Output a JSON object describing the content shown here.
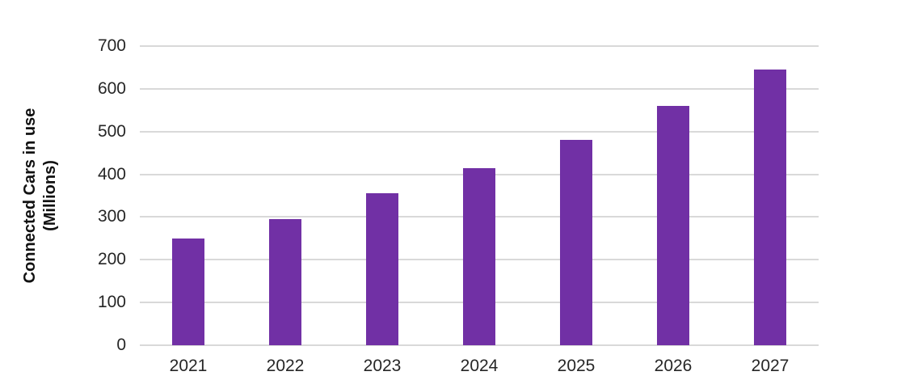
{
  "chart_data": {
    "type": "bar",
    "title": "",
    "categories": [
      "2021",
      "2022",
      "2023",
      "2024",
      "2025",
      "2026",
      "2027"
    ],
    "values": [
      250,
      295,
      355,
      415,
      480,
      560,
      645
    ],
    "series_name": "Connected cars in use",
    "xlabel": "",
    "ylabel_line1": "Connected Cars in use",
    "ylabel_line2": "(Millions)",
    "ylabel": "Connected Cars in use (Millions)",
    "y_ticks": [
      0,
      100,
      200,
      300,
      400,
      500,
      600,
      700
    ],
    "ylim": [
      0,
      700
    ],
    "grid": true,
    "legend": false,
    "colors": {
      "bar": "#7130A5",
      "gridline": "#D9D9D9",
      "tick_text": "#262626",
      "background": "#FFFFFF"
    }
  }
}
